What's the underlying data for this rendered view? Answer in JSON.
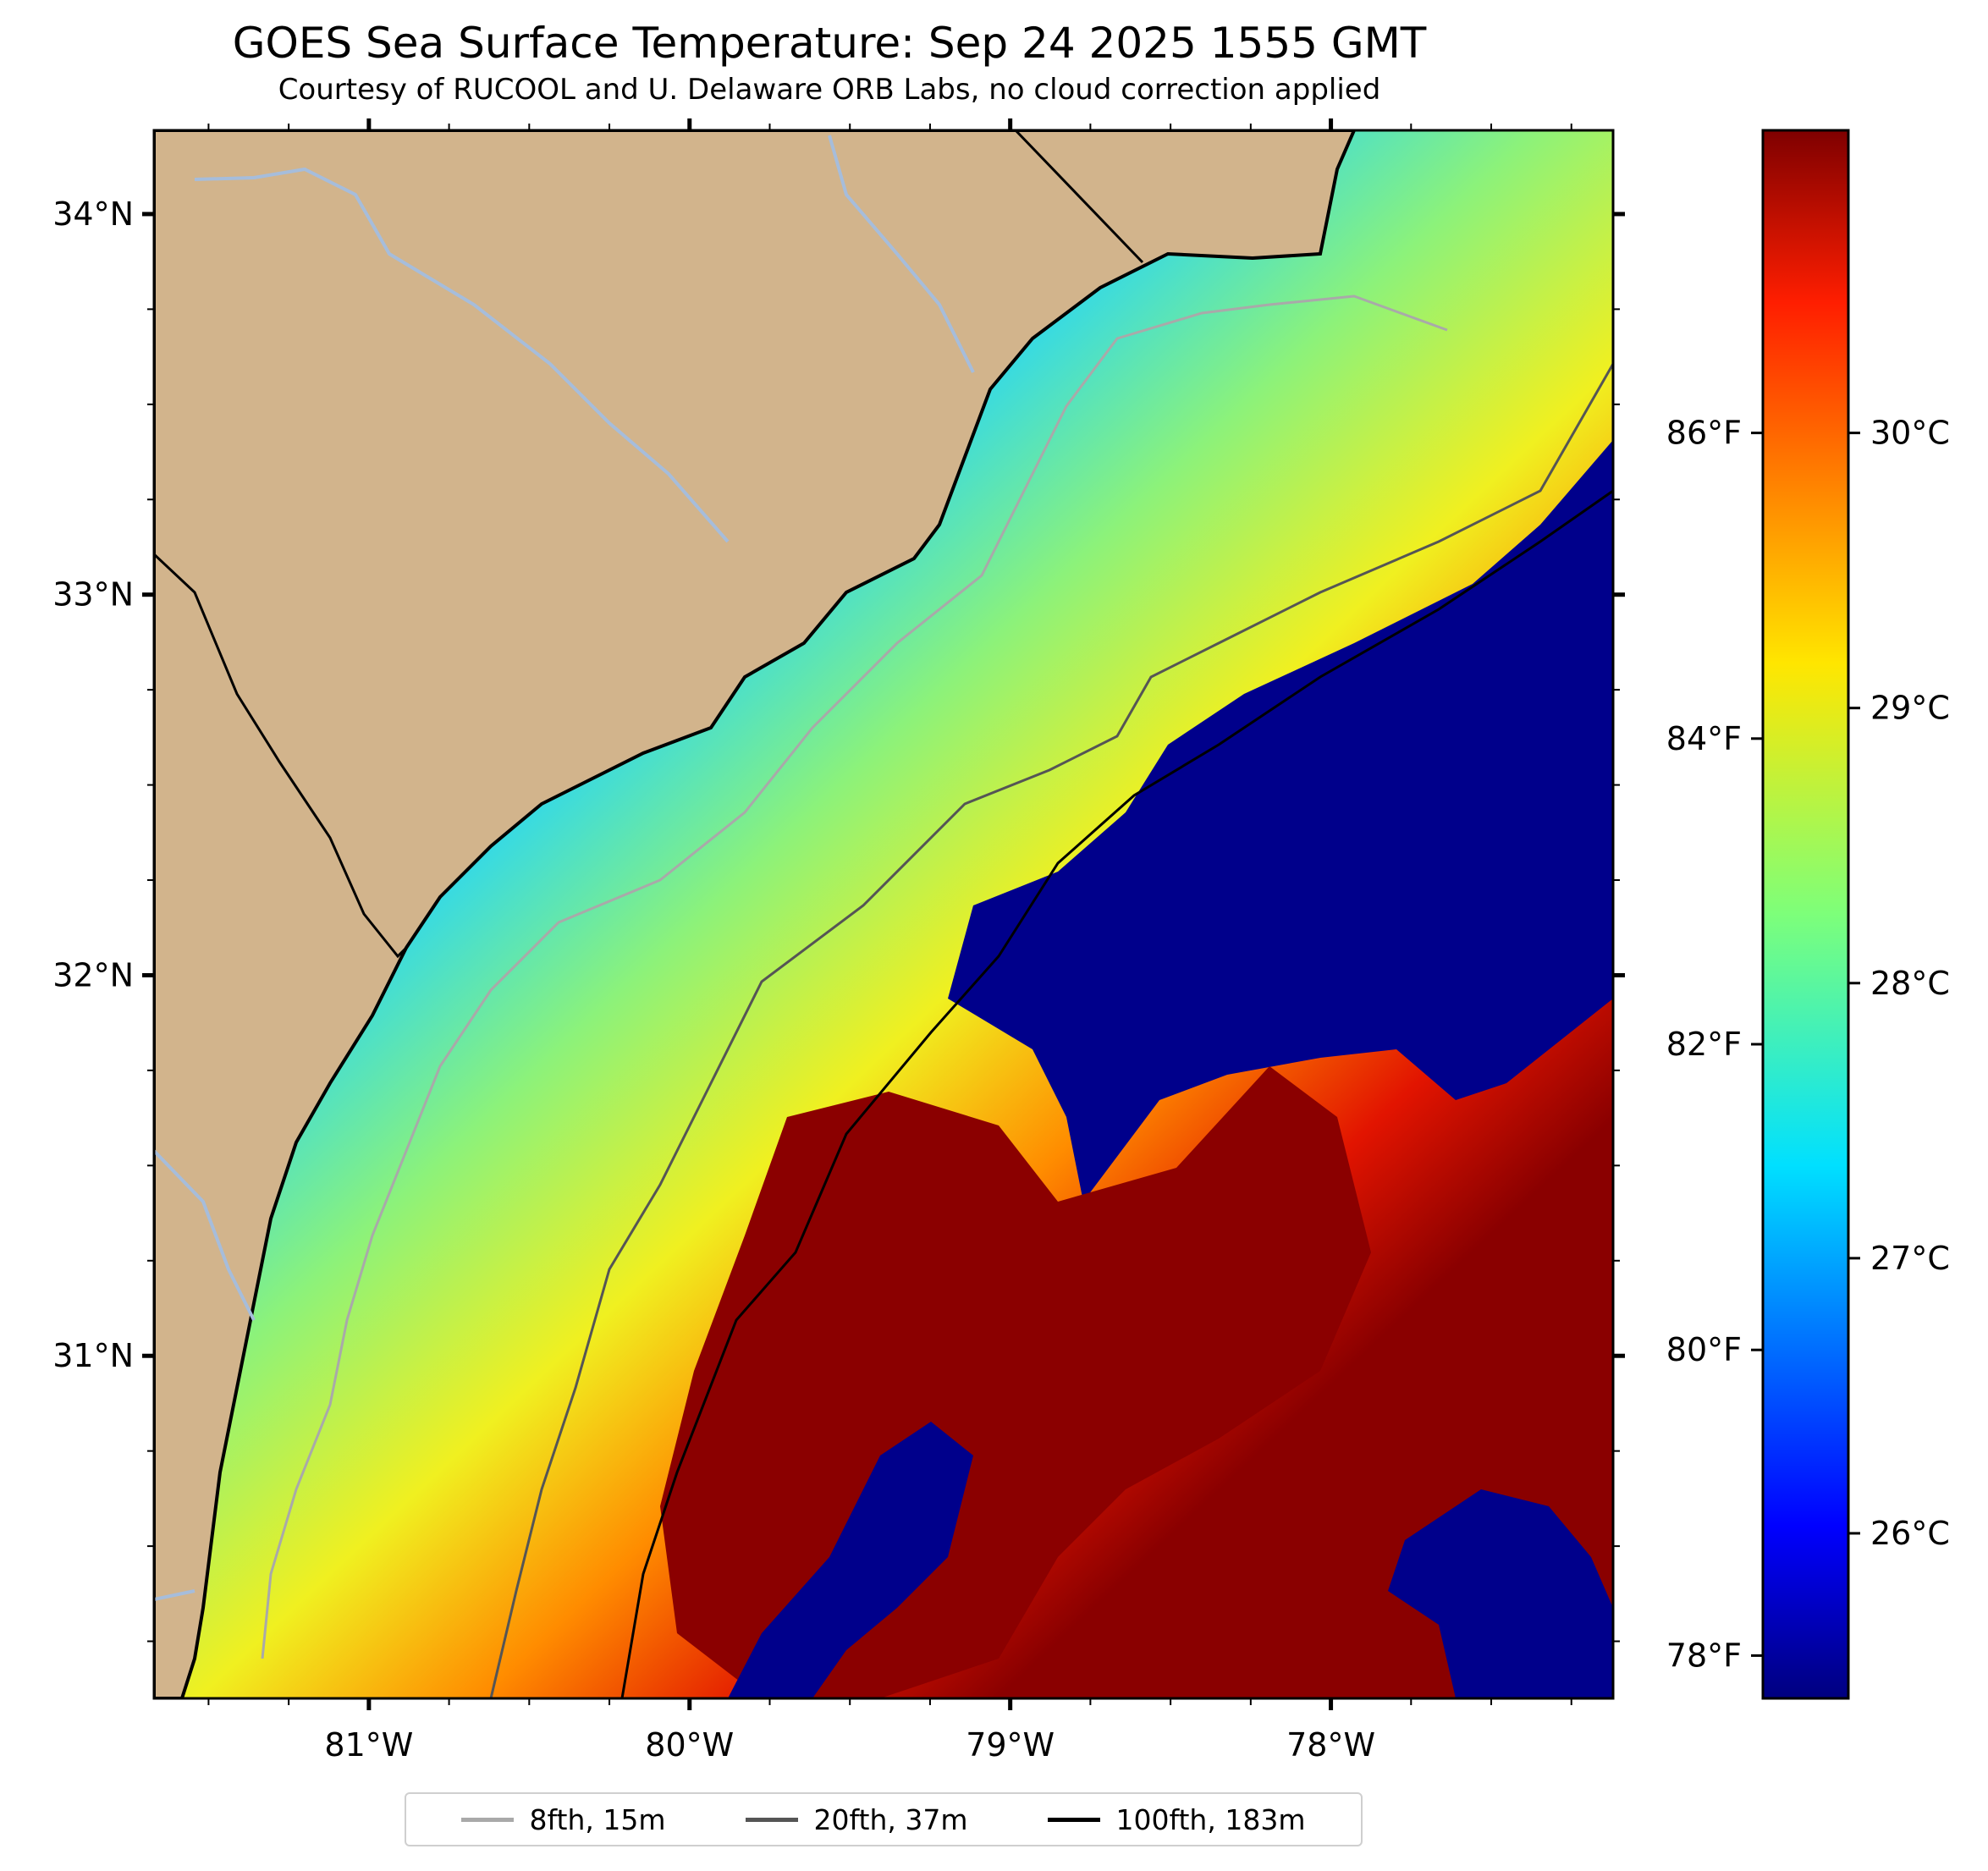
{
  "title": "GOES Sea Surface Temperature: Sep 24 2025 1555 GMT",
  "subtitle": "Courtesy of RUCOOL and U. Delaware ORB Labs, no cloud correction applied",
  "map": {
    "lon_range": [
      -81.67,
      -77.12
    ],
    "lat_range": [
      30.1,
      34.22
    ],
    "lon_ticks": [
      "81°W",
      "80°W",
      "79°W",
      "78°W"
    ],
    "lat_ticks": [
      "34°N",
      "33°N",
      "32°N",
      "31°N"
    ],
    "land_color": "#d2b48c",
    "river_color": "#a6bddb"
  },
  "colorbar": {
    "celsius_ticks": [
      "30°C",
      "29°C",
      "28°C",
      "27°C",
      "26°C"
    ],
    "fahrenheit_ticks": [
      "86°F",
      "84°F",
      "82°F",
      "80°F",
      "78°F"
    ],
    "colormap": "jet",
    "range_c": [
      25.4,
      31.1
    ]
  },
  "legend": {
    "items": [
      {
        "label": "8fth, 15m",
        "color": "#a9a9a9"
      },
      {
        "label": "20fth, 37m",
        "color": "#555555"
      },
      {
        "label": "100fth, 183m",
        "color": "#000000"
      }
    ]
  }
}
